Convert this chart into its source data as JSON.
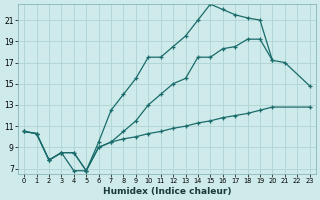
{
  "xlabel": "Humidex (Indice chaleur)",
  "bg_color": "#ceeaea",
  "grid_color": "#aed4d4",
  "line_color": "#1a6b6b",
  "xlim": [
    -0.5,
    23.5
  ],
  "ylim": [
    6.5,
    22.5
  ],
  "xticks": [
    0,
    1,
    2,
    3,
    4,
    5,
    6,
    7,
    8,
    9,
    10,
    11,
    12,
    13,
    14,
    15,
    16,
    17,
    18,
    19,
    20,
    21,
    22,
    23
  ],
  "yticks": [
    7,
    9,
    11,
    13,
    15,
    17,
    19,
    21
  ],
  "line1_x": [
    0,
    1,
    2,
    3,
    4,
    5,
    6,
    7,
    8,
    9,
    10,
    11,
    12,
    13,
    14,
    15,
    16,
    17,
    18,
    19,
    20
  ],
  "line1_y": [
    10.5,
    10.3,
    7.8,
    8.5,
    6.8,
    6.8,
    9.5,
    12.5,
    14.0,
    15.5,
    17.5,
    17.5,
    18.5,
    19.5,
    21.0,
    22.5,
    22.0,
    21.5,
    21.2,
    21.0,
    17.2
  ],
  "line2_x": [
    0,
    1,
    2,
    3,
    4,
    5,
    6,
    7,
    8,
    9,
    10,
    11,
    12,
    13,
    14,
    15,
    16,
    17,
    18,
    19,
    20,
    21,
    22,
    23
  ],
  "line2_y": [
    10.5,
    10.3,
    7.8,
    8.5,
    8.5,
    6.8,
    9.0,
    9.5,
    10.5,
    11.5,
    13.0,
    14.0,
    15.0,
    15.5,
    17.5,
    17.5,
    18.3,
    18.5,
    19.2,
    19.2,
    17.2,
    17.0,
    null,
    14.8
  ],
  "line3_x": [
    0,
    1,
    2,
    3,
    4,
    5,
    6,
    7,
    8,
    9,
    10,
    11,
    12,
    13,
    14,
    15,
    16,
    17,
    18,
    19,
    20,
    21,
    22,
    23
  ],
  "line3_y": [
    10.5,
    10.3,
    7.8,
    8.5,
    8.5,
    6.8,
    9.0,
    9.5,
    9.8,
    10.0,
    10.3,
    10.5,
    10.8,
    11.0,
    11.3,
    11.5,
    11.8,
    12.0,
    12.2,
    12.5,
    12.8,
    null,
    null,
    12.8
  ]
}
